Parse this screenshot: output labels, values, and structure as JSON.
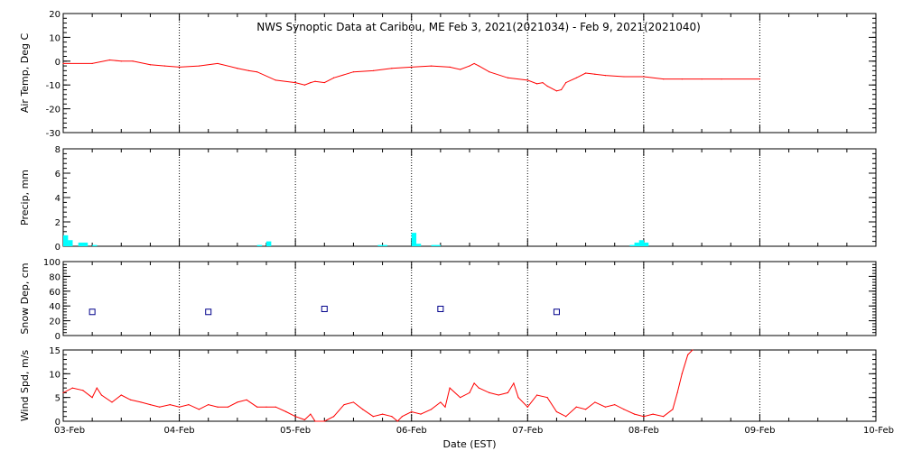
{
  "chart_data": {
    "type": "line",
    "title": "NWS Synoptic Data at Caribou, ME   Feb  3, 2021(2021034) - Feb  9, 2021(2021040)",
    "xlabel": "Date (EST)",
    "x_ticks": [
      "03-Feb",
      "04-Feb",
      "05-Feb",
      "06-Feb",
      "07-Feb",
      "08-Feb",
      "09-Feb",
      "10-Feb"
    ],
    "xlim_days": [
      0,
      7
    ],
    "grid": "dotted vertical lines at each day",
    "colors": {
      "temp": "#ff0000",
      "precip": "#00ffff",
      "snow": "#00008b",
      "wind": "#ff0000"
    },
    "panels": [
      {
        "id": "air_temp",
        "type": "line",
        "ylabel": "Air Temp, Deg C",
        "ylim": [
          -30,
          20
        ],
        "yticks": [
          "20",
          "10",
          "0",
          "-10",
          "-20",
          "-30"
        ],
        "series": [
          {
            "x": [
              0.0,
              0.25,
              0.4,
              0.5,
              0.6,
              0.75,
              0.875,
              1.0,
              1.17,
              1.33,
              1.5,
              1.6,
              1.67,
              1.83,
              2.0,
              2.08,
              2.13,
              2.17,
              2.25,
              2.33,
              2.5,
              2.67,
              2.83,
              3.0,
              3.17,
              3.33,
              3.42,
              3.5,
              3.54,
              3.58,
              3.67,
              3.83,
              4.0,
              4.08,
              4.13,
              4.17,
              4.25,
              4.29,
              4.33,
              4.42,
              4.5,
              4.58,
              4.67,
              4.83,
              5.0,
              5.17,
              5.33,
              5.5,
              5.67,
              6.0
            ],
            "y": [
              -1.0,
              -1.0,
              0.5,
              0.0,
              0.0,
              -1.5,
              -2.0,
              -2.5,
              -2.0,
              -1.0,
              -3.0,
              -4.0,
              -4.5,
              -8.0,
              -9.0,
              -10.0,
              -9.0,
              -8.5,
              -9.0,
              -7.0,
              -4.5,
              -4.0,
              -3.0,
              -2.5,
              -2.0,
              -2.5,
              -3.5,
              -2.0,
              -1.0,
              -2.0,
              -4.5,
              -7.0,
              -8.0,
              -9.5,
              -9.0,
              -10.5,
              -12.5,
              -12.0,
              -9.0,
              -7.0,
              -5.0,
              -5.5,
              -6.0,
              -6.5,
              -6.5,
              -7.5,
              -7.5,
              -7.5,
              -7.5,
              -7.5
            ]
          }
        ]
      },
      {
        "id": "precip",
        "type": "bar",
        "ylabel": "Precip, mm",
        "ylim": [
          0,
          8
        ],
        "yticks": [
          "8",
          "6",
          "4",
          "2",
          "0"
        ],
        "bars": [
          {
            "x": 0.0,
            "v": 0.9
          },
          {
            "x": 0.04,
            "v": 0.5
          },
          {
            "x": 0.13,
            "v": 0.3
          },
          {
            "x": 0.17,
            "v": 0.3
          },
          {
            "x": 0.25,
            "v": 0.1
          },
          {
            "x": 1.67,
            "v": 0.1
          },
          {
            "x": 1.75,
            "v": 0.4
          },
          {
            "x": 2.71,
            "v": 0.1
          },
          {
            "x": 2.75,
            "v": 0.1
          },
          {
            "x": 3.0,
            "v": 1.1
          },
          {
            "x": 3.04,
            "v": 0.2
          },
          {
            "x": 3.17,
            "v": 0.1
          },
          {
            "x": 3.21,
            "v": 0.1
          },
          {
            "x": 4.88,
            "v": 0.1
          },
          {
            "x": 4.92,
            "v": 0.3
          },
          {
            "x": 4.96,
            "v": 0.5
          },
          {
            "x": 5.0,
            "v": 0.3
          }
        ]
      },
      {
        "id": "snow_depth",
        "type": "scatter",
        "ylabel": "Snow Dep, cm",
        "ylim": [
          0,
          100
        ],
        "yticks": [
          "100",
          "80",
          "60",
          "40",
          "20",
          "0"
        ],
        "points": [
          {
            "x": 0.25,
            "y": 32
          },
          {
            "x": 1.25,
            "y": 32
          },
          {
            "x": 2.25,
            "y": 36
          },
          {
            "x": 3.25,
            "y": 36
          },
          {
            "x": 4.25,
            "y": 32
          }
        ]
      },
      {
        "id": "wind_speed",
        "type": "line",
        "ylabel": "Wind Spd, m/s",
        "ylim": [
          0,
          15
        ],
        "yticks": [
          "15",
          "10",
          "5",
          "0"
        ],
        "series": [
          {
            "x": [
              0.0,
              0.08,
              0.17,
              0.25,
              0.29,
              0.33,
              0.42,
              0.5,
              0.58,
              0.67,
              0.75,
              0.83,
              0.92,
              1.0,
              1.08,
              1.17,
              1.25,
              1.33,
              1.42,
              1.5,
              1.58,
              1.67,
              1.75,
              1.83,
              1.92,
              2.0,
              2.08,
              2.13,
              2.17,
              2.25,
              2.33,
              2.42,
              2.5,
              2.58,
              2.67,
              2.75,
              2.83,
              2.88,
              2.92,
              3.0,
              3.08,
              3.17,
              3.25,
              3.29,
              3.33,
              3.42,
              3.5,
              3.54,
              3.58,
              3.67,
              3.75,
              3.83,
              3.88,
              3.92,
              4.0,
              4.08,
              4.17,
              4.25,
              4.33,
              4.42,
              4.5,
              4.58,
              4.67,
              4.75,
              4.83,
              4.92,
              5.0,
              5.08,
              5.17,
              5.25,
              5.29,
              5.33,
              5.38,
              5.42
            ],
            "y": [
              6.0,
              7.0,
              6.5,
              5.0,
              7.0,
              5.5,
              4.0,
              5.5,
              4.5,
              4.0,
              3.5,
              3.0,
              3.5,
              3.0,
              3.5,
              2.5,
              3.5,
              3.0,
              3.0,
              4.0,
              4.5,
              3.0,
              3.0,
              3.0,
              2.0,
              1.0,
              0.3,
              1.5,
              0.0,
              0.0,
              1.0,
              3.5,
              4.0,
              2.5,
              1.0,
              1.5,
              1.0,
              0.0,
              1.0,
              2.0,
              1.5,
              2.5,
              4.0,
              3.0,
              7.0,
              5.0,
              6.0,
              8.0,
              7.0,
              6.0,
              5.5,
              6.0,
              8.0,
              5.0,
              3.0,
              5.5,
              5.0,
              2.0,
              1.0,
              3.0,
              2.5,
              4.0,
              3.0,
              3.5,
              2.5,
              1.5,
              1.0,
              1.5,
              1.0,
              2.5,
              6.0,
              10.0,
              14.0,
              15.5
            ]
          }
        ]
      }
    ]
  }
}
